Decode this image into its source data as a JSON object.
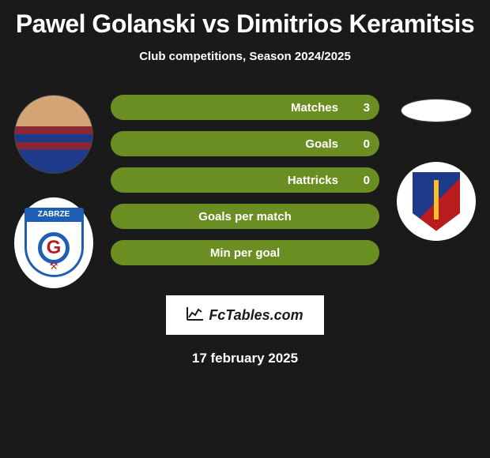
{
  "title": "Pawel Golanski vs Dimitrios Keramitsis",
  "subtitle": "Club competitions, Season 2024/2025",
  "bars": {
    "bg_color": "#6b8e23",
    "text_color": "#ffffff",
    "font_size": 15,
    "font_weight": 700,
    "height": 32,
    "radius": 16,
    "rows": [
      {
        "label": "Matches",
        "left_value": "3",
        "type": "split",
        "left_width_pct": 100
      },
      {
        "label": "Goals",
        "left_value": "0",
        "type": "split",
        "left_width_pct": 100
      },
      {
        "label": "Hattricks",
        "left_value": "0",
        "type": "split",
        "left_width_pct": 100
      },
      {
        "label": "Goals per match",
        "type": "full"
      },
      {
        "label": "Min per goal",
        "type": "full"
      }
    ]
  },
  "players": {
    "p1_name": "Pawel Golanski",
    "p2_name": "Dimitrios Keramitsis"
  },
  "clubs": {
    "c1_label": "ZABRZE",
    "c1_letter": "G",
    "c1_colors": {
      "blue": "#1e5fb4",
      "red": "#b91c1c",
      "white": "#ffffff"
    },
    "c2_colors": {
      "blue": "#1e3a8a",
      "red": "#b91c1c",
      "gold": "#fbbf24"
    }
  },
  "branding": {
    "site": "FcTables.com",
    "logo_bg": "#ffffff",
    "logo_text_color": "#1a1a1a"
  },
  "date": "17 february 2025",
  "page": {
    "bg": "#1a1a1a",
    "text": "#ffffff",
    "title_fontsize": 32,
    "subtitle_fontsize": 15,
    "date_fontsize": 17
  }
}
